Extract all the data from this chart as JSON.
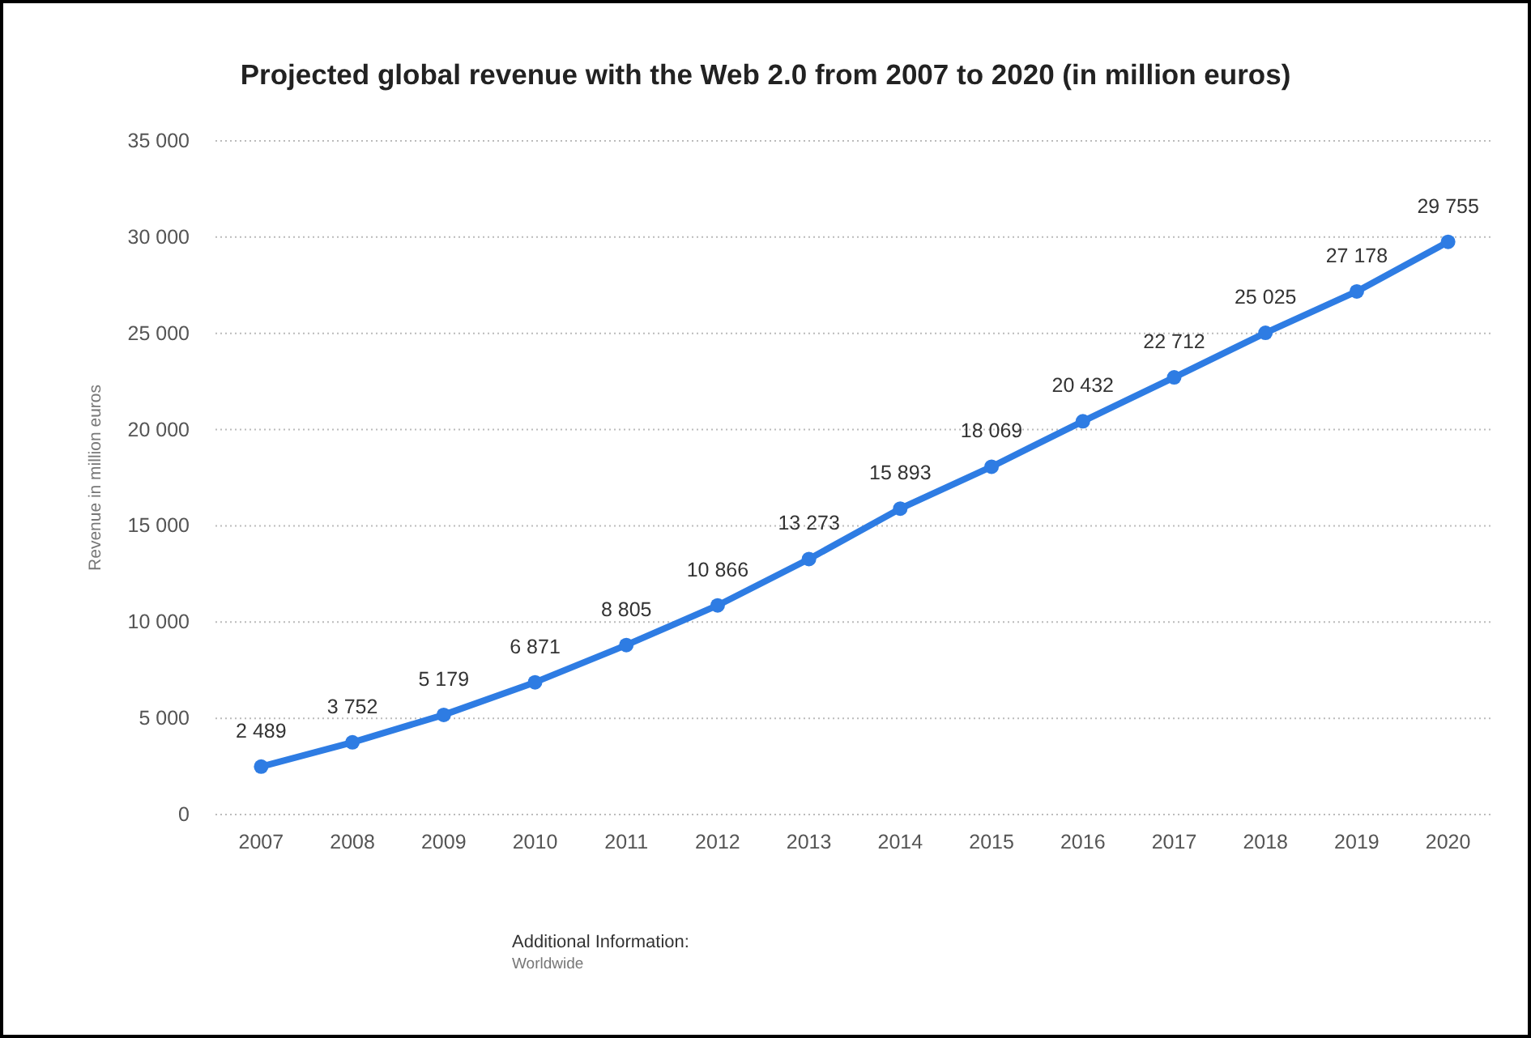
{
  "chart_data": {
    "type": "line",
    "title": "Projected global revenue with the Web 2.0 from 2007 to 2020 (in million euros)",
    "ylabel": "Revenue in million euros",
    "categories": [
      "2007",
      "2008",
      "2009",
      "2010",
      "2011",
      "2012",
      "2013",
      "2014",
      "2015",
      "2016",
      "2017",
      "2018",
      "2019",
      "2020"
    ],
    "series": [
      {
        "color": "#2e7ce3",
        "values": [
          2489,
          3752,
          5179,
          6871,
          8805,
          10866,
          13273,
          15893,
          18069,
          20432,
          22712,
          25025,
          27178,
          29755
        ]
      }
    ],
    "value_labels": [
      "2 489",
      "3 752",
      "5 179",
      "6 871",
      "8 805",
      "10 866",
      "13 273",
      "15 893",
      "18 069",
      "20 432",
      "22 712",
      "25 025",
      "27 178",
      "29 755"
    ],
    "ylim": [
      0,
      35000
    ],
    "yticks": [
      {
        "value": 0,
        "label": "0"
      },
      {
        "value": 5000,
        "label": "5 000"
      },
      {
        "value": 10000,
        "label": "10 000"
      },
      {
        "value": 15000,
        "label": "15 000"
      },
      {
        "value": 20000,
        "label": "20 000"
      },
      {
        "value": 25000,
        "label": "25 000"
      },
      {
        "value": 30000,
        "label": "30 000"
      },
      {
        "value": 35000,
        "label": "35 000"
      }
    ],
    "grid": "y",
    "marker": "circle",
    "line_style": "solid",
    "annotations": [
      "Additional Information:",
      "Worldwide"
    ]
  }
}
